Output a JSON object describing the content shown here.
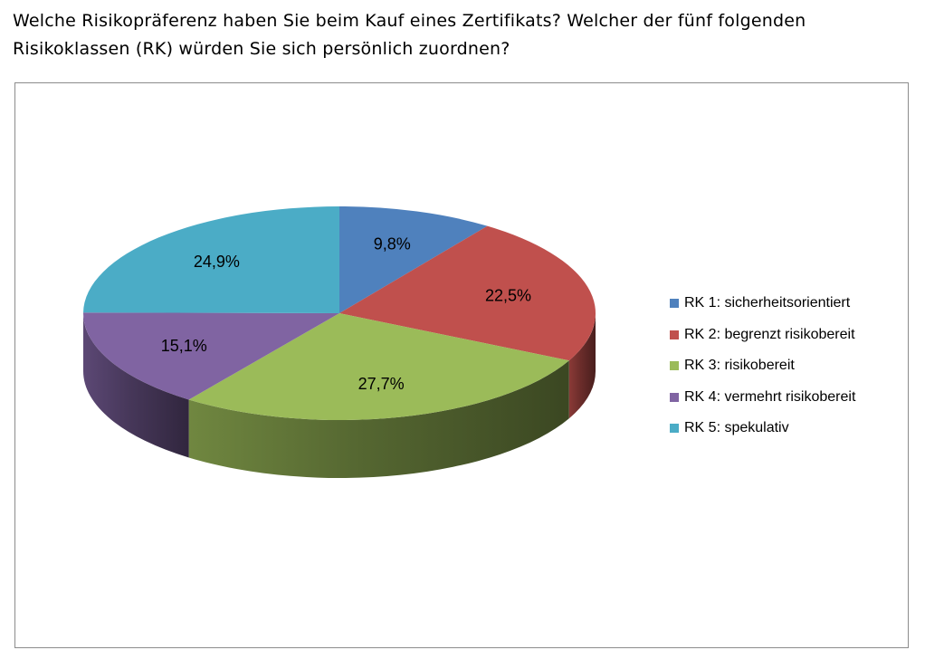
{
  "question": {
    "line1": "Welche Risikopräferenz haben Sie beim Kauf eines Zertifikats? Welcher der fünf folgenden",
    "line2": "Risikoklassen (RK) würden Sie sich persönlich zuordnen?"
  },
  "chart_data": {
    "type": "pie",
    "style": "3d",
    "unit": "%",
    "legend_position": "right",
    "slices": [
      {
        "name": "RK 1: sicherheitsorientiert",
        "value": 9.8,
        "label": "9,8%",
        "color": "#4f81bd"
      },
      {
        "name": "RK 2: begrenzt risikobereit",
        "value": 22.5,
        "label": "22,5%",
        "color": "#c0504d"
      },
      {
        "name": "RK 3: risikobereit",
        "value": 27.7,
        "label": "27,7%",
        "color": "#9bbb59"
      },
      {
        "name": "RK 4: vermehrt risikobereit",
        "value": 15.1,
        "label": "15,1%",
        "color": "#8064a2"
      },
      {
        "name": "RK 5: spekulativ",
        "value": 24.9,
        "label": "24,9%",
        "color": "#4bacc6"
      }
    ]
  }
}
